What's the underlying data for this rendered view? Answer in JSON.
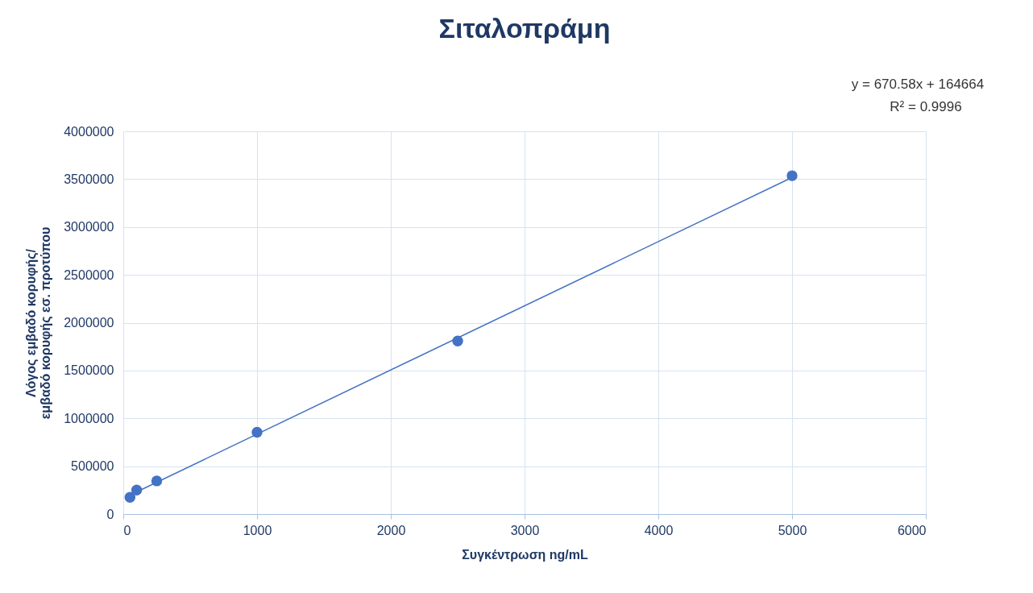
{
  "chart_data": {
    "type": "scatter",
    "title": "Σιταλοπράμη",
    "xlabel": "Συγκέντρωση ng/mL",
    "ylabel": "Λόγος εμβαδό κορυφής/\nεμβαδό κορυφής εσ. προτύπου",
    "annotations": [
      "y = 670.58x + 164664",
      "R² = 0.9996"
    ],
    "series": [
      {
        "color": "#4472c4",
        "x": [
          50,
          100,
          250,
          1000,
          2500,
          5000
        ],
        "values": [
          175000,
          251000,
          346000,
          855000,
          1808000,
          3536000
        ]
      },
      {
        "type": "line",
        "marker": "none",
        "color": "#4472c4",
        "x": [
          50,
          5000
        ],
        "values": [
          198000,
          3518000
        ]
      }
    ],
    "xlim": [
      0,
      6000
    ],
    "xticks": [
      0,
      1000,
      2000,
      3000,
      4000,
      5000,
      6000
    ],
    "ylim": [
      0,
      4000000
    ],
    "yticks": [
      0,
      500000,
      1000000,
      1500000,
      2000000,
      2500000,
      3000000,
      3500000,
      4000000
    ],
    "grid": true,
    "marker": "circle"
  }
}
